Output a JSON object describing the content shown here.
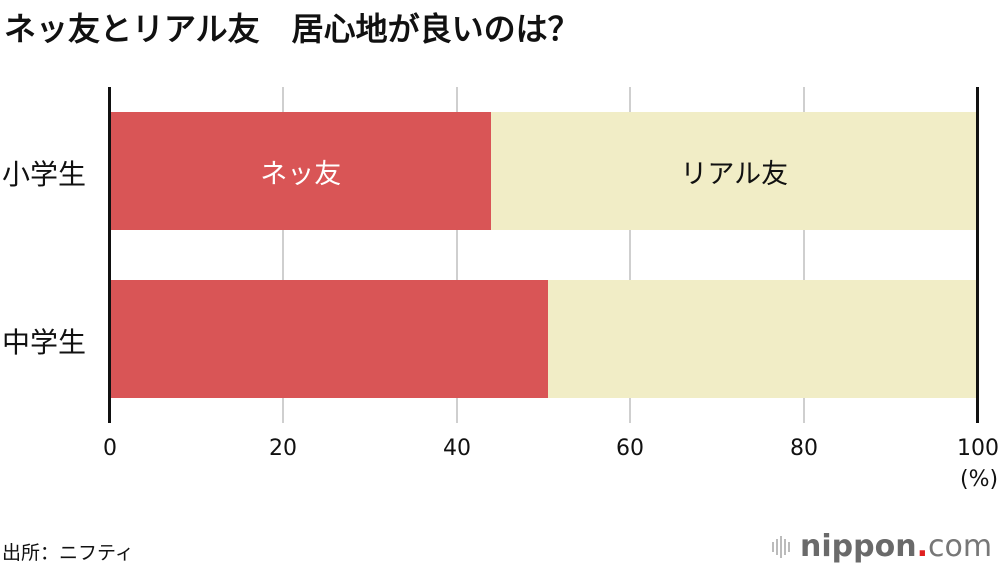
{
  "title": "ネッ友とリアル友　居心地が良いのは？",
  "chart_data": {
    "type": "bar",
    "orientation": "horizontal",
    "stacked": true,
    "title": "ネッ友とリアル友　居心地が良いのは？",
    "categories": [
      "小学生",
      "中学生"
    ],
    "series": [
      {
        "name": "ネッ友",
        "color": "#d95556",
        "values": [
          44.0,
          50.5
        ]
      },
      {
        "name": "リアル友",
        "color": "#f1edc6",
        "values": [
          56.0,
          49.5
        ]
      }
    ],
    "xlabel": "(%)",
    "ylabel": "",
    "xlim": [
      0,
      100
    ],
    "x_ticks": [
      "0",
      "20",
      "40",
      "60",
      "80",
      "100"
    ],
    "grid": true,
    "legend": "inline labels on first bar"
  },
  "labels": {
    "series_inline": [
      "ネッ友",
      "リアル友"
    ],
    "unit": "(%)",
    "ticks": [
      "0",
      "20",
      "40",
      "60",
      "80",
      "100"
    ]
  },
  "footer": {
    "source": "出所：ニフティ",
    "logo_name": "nippon",
    "logo_dot": ".",
    "logo_com": "com"
  },
  "colors": {
    "net": "#d95556",
    "real": "#f1edc6",
    "grid": "#cfcfcf",
    "axis": "#111111"
  }
}
